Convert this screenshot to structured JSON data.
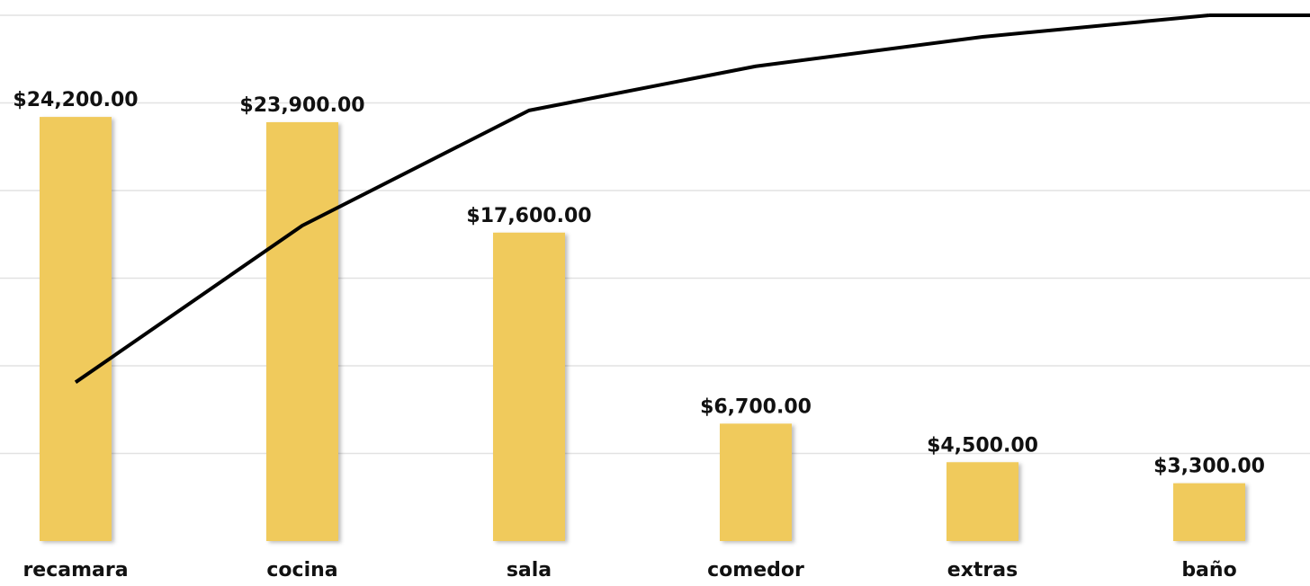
{
  "chart_data": {
    "type": "bar",
    "categories": [
      "recamara",
      "cocina",
      "sala",
      "comedor",
      "extras",
      "baño"
    ],
    "series": [
      {
        "type": "bar",
        "color": "#f0ca5c",
        "values": [
          24200,
          23900,
          17600,
          6700,
          4500,
          3300
        ],
        "value_labels": [
          "$24,200.00",
          "$23,900.00",
          "$17,600.00",
          "$6,700.00",
          "$4,500.00",
          "$3,300.00"
        ]
      },
      {
        "type": "line",
        "axis": "y2",
        "color": "#000000",
        "values": [
          30.2,
          60,
          81.9,
          90.3,
          95.9,
          100
        ]
      }
    ],
    "ylim": [
      0,
      30000
    ],
    "yticks": [
      0,
      5000,
      10000,
      15000,
      20000,
      25000,
      30000
    ],
    "y2lim": [
      0,
      100
    ],
    "grid": true
  }
}
